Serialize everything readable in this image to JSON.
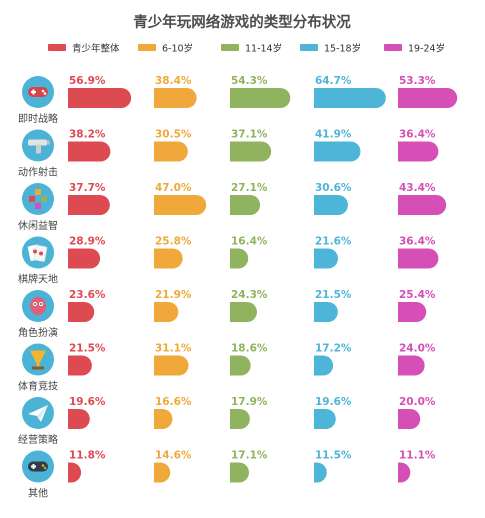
{
  "chart_data": {
    "type": "bar",
    "orientation": "horizontal",
    "title": "青少年玩网络游戏的类型分布状况",
    "legend_position": "top",
    "grid": false,
    "value_unit": "%",
    "xlim": [
      0,
      100
    ],
    "categories": [
      "即时战略",
      "动作射击",
      "休闲益智",
      "棋牌天地",
      "角色扮演",
      "体育竞技",
      "经营策略",
      "其他"
    ],
    "category_icons": [
      "gamepad-icon",
      "gun-icon",
      "puzzle-blocks-icon",
      "playing-cards-icon",
      "monster-icon",
      "trophy-icon",
      "paper-plane-icon",
      "controller-icon"
    ],
    "icon_color": "#4ab3d6",
    "series": [
      {
        "name": "青少年整体",
        "color": "#de4a52",
        "values": [
          56.9,
          38.2,
          37.7,
          28.9,
          23.6,
          21.5,
          19.6,
          11.8
        ],
        "labels": [
          "56.9%",
          "38.2%",
          "37.7%",
          "28.9%",
          "23.6%",
          "21.5%",
          "19.6%",
          "11.8%"
        ]
      },
      {
        "name": "6-10岁",
        "color": "#f0a83a",
        "values": [
          38.4,
          30.5,
          47.0,
          25.8,
          21.9,
          31.1,
          16.6,
          14.6
        ],
        "labels": [
          "38.4%",
          "30.5%",
          "47.0%",
          "25.8%",
          "21.9%",
          "31.1%",
          "16.6%",
          "14.6%"
        ]
      },
      {
        "name": "11-14岁",
        "color": "#8fb35e",
        "values": [
          54.3,
          37.1,
          27.1,
          16.4,
          24.3,
          18.6,
          17.9,
          17.1
        ],
        "labels": [
          "54.3%",
          "37.1%",
          "27.1%",
          "16.4%",
          "24.3%",
          "18.6%",
          "17.9%",
          "17.1%"
        ]
      },
      {
        "name": "15-18岁",
        "color": "#4db6d8",
        "values": [
          64.7,
          41.9,
          30.6,
          21.6,
          21.5,
          17.2,
          19.6,
          11.5
        ],
        "labels": [
          "64.7%",
          "41.9%",
          "30.6%",
          "21.6%",
          "21.5%",
          "17.2%",
          "19.6%",
          "11.5%"
        ]
      },
      {
        "name": "19-24岁",
        "color": "#d54fb6",
        "values": [
          53.3,
          36.4,
          43.4,
          36.4,
          25.4,
          24.0,
          20.0,
          11.1
        ],
        "labels": [
          "53.3%",
          "36.4%",
          "43.4%",
          "36.4%",
          "25.4%",
          "24.0%",
          "20.0%",
          "11.1%"
        ]
      }
    ]
  }
}
